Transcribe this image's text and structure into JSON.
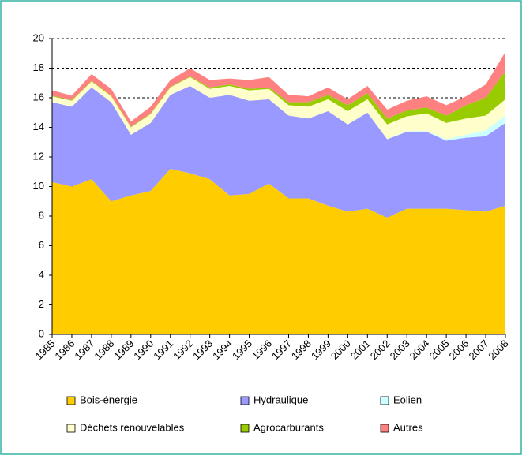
{
  "chart_data": {
    "type": "stacked-area",
    "categories": [
      "1985",
      "1986",
      "1987",
      "1988",
      "1989",
      "1990",
      "1991",
      "1992",
      "1993",
      "1994",
      "1995",
      "1996",
      "1997",
      "1998",
      "1999",
      "2000",
      "2001",
      "2002",
      "2003",
      "2004",
      "2005",
      "2006",
      "2007",
      "2008"
    ],
    "series": [
      {
        "name": "Bois-énergie",
        "color": "#ffcc00",
        "values": [
          10.3,
          10.0,
          10.5,
          9.0,
          9.4,
          9.7,
          11.2,
          10.9,
          10.5,
          9.4,
          9.5,
          10.2,
          9.2,
          9.2,
          8.7,
          8.3,
          8.5,
          7.9,
          8.5,
          8.5,
          8.5,
          8.4,
          8.3,
          8.7
        ]
      },
      {
        "name": "Hydraulique",
        "color": "#9999ff",
        "values": [
          5.4,
          5.4,
          6.2,
          6.7,
          4.1,
          4.6,
          5.0,
          5.9,
          5.5,
          6.8,
          6.3,
          5.7,
          5.6,
          5.4,
          6.4,
          5.9,
          6.5,
          5.3,
          5.2,
          5.2,
          4.6,
          4.9,
          5.1,
          5.6
        ]
      },
      {
        "name": "Eolien",
        "color": "#ccffff",
        "values": [
          0,
          0,
          0,
          0,
          0,
          0,
          0,
          0,
          0,
          0,
          0,
          0,
          0,
          0,
          0,
          0,
          0,
          0,
          0.05,
          0.05,
          0.1,
          0.2,
          0.4,
          0.5
        ]
      },
      {
        "name": "Déchets renouvelables",
        "color": "#ffffcc",
        "values": [
          0.4,
          0.4,
          0.4,
          0.4,
          0.5,
          0.6,
          0.5,
          0.6,
          0.6,
          0.6,
          0.7,
          0.7,
          0.7,
          0.8,
          0.8,
          0.9,
          0.9,
          1.0,
          1.0,
          1.2,
          1.1,
          1.1,
          1.0,
          1.1
        ]
      },
      {
        "name": "Agrocarburants",
        "color": "#99cc00",
        "values": [
          0.05,
          0.05,
          0.05,
          0.05,
          0.05,
          0.05,
          0.05,
          0.05,
          0.1,
          0.1,
          0.1,
          0.1,
          0.2,
          0.3,
          0.3,
          0.4,
          0.4,
          0.4,
          0.4,
          0.4,
          0.5,
          0.9,
          1.2,
          1.9
        ]
      },
      {
        "name": "Autres",
        "color": "#ff8080",
        "values": [
          0.35,
          0.3,
          0.45,
          0.45,
          0.35,
          0.45,
          0.45,
          0.55,
          0.5,
          0.4,
          0.6,
          0.7,
          0.5,
          0.4,
          0.5,
          0.4,
          0.5,
          0.6,
          0.65,
          0.75,
          0.7,
          0.6,
          0.9,
          1.3
        ]
      }
    ],
    "ylim": [
      0,
      20
    ],
    "yticks": [
      0,
      2,
      4,
      6,
      8,
      10,
      12,
      14,
      16,
      18,
      20
    ],
    "grid": true
  }
}
